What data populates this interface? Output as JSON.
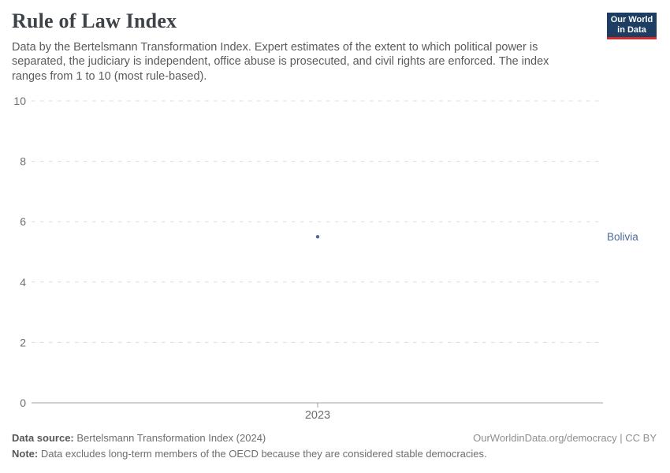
{
  "header": {
    "title": "Rule of Law Index",
    "subtitle": "Data by the Bertelsmann Transformation Index. Expert estimates of the extent to which political power is separated, the judiciary is independent, office abuse is prosecuted, and civil rights are enforced. The index ranges from 1 to 10 (most rule-based).",
    "logo": {
      "line1": "Our World",
      "line2": "in Data"
    }
  },
  "chart_data": {
    "type": "scatter",
    "title": "Rule of Law Index",
    "x": [
      2023
    ],
    "xtick_labels": [
      "2023"
    ],
    "series": [
      {
        "name": "Bolivia",
        "values": [
          5.5
        ],
        "color": "#4C6A9C"
      }
    ],
    "ylim": [
      0,
      10
    ],
    "yticks": [
      0,
      2,
      4,
      6,
      8,
      10
    ],
    "grid": true,
    "legend_position": "right-entity-label"
  },
  "colors": {
    "grid": "#dcdcdc",
    "axis": "#a1a1a1",
    "tick_label": "#6e6e6e",
    "logo_bg": "#1d3d63",
    "logo_accent": "#d42b2b"
  },
  "footer": {
    "source_label": "Data source:",
    "source_text": " Bertelsmann Transformation Index (2024)",
    "note_label": "Note:",
    "note_text": " Data excludes long-term members of the OECD because they are considered stable democracies.",
    "right_text": "OurWorldinData.org/democracy | CC BY"
  }
}
